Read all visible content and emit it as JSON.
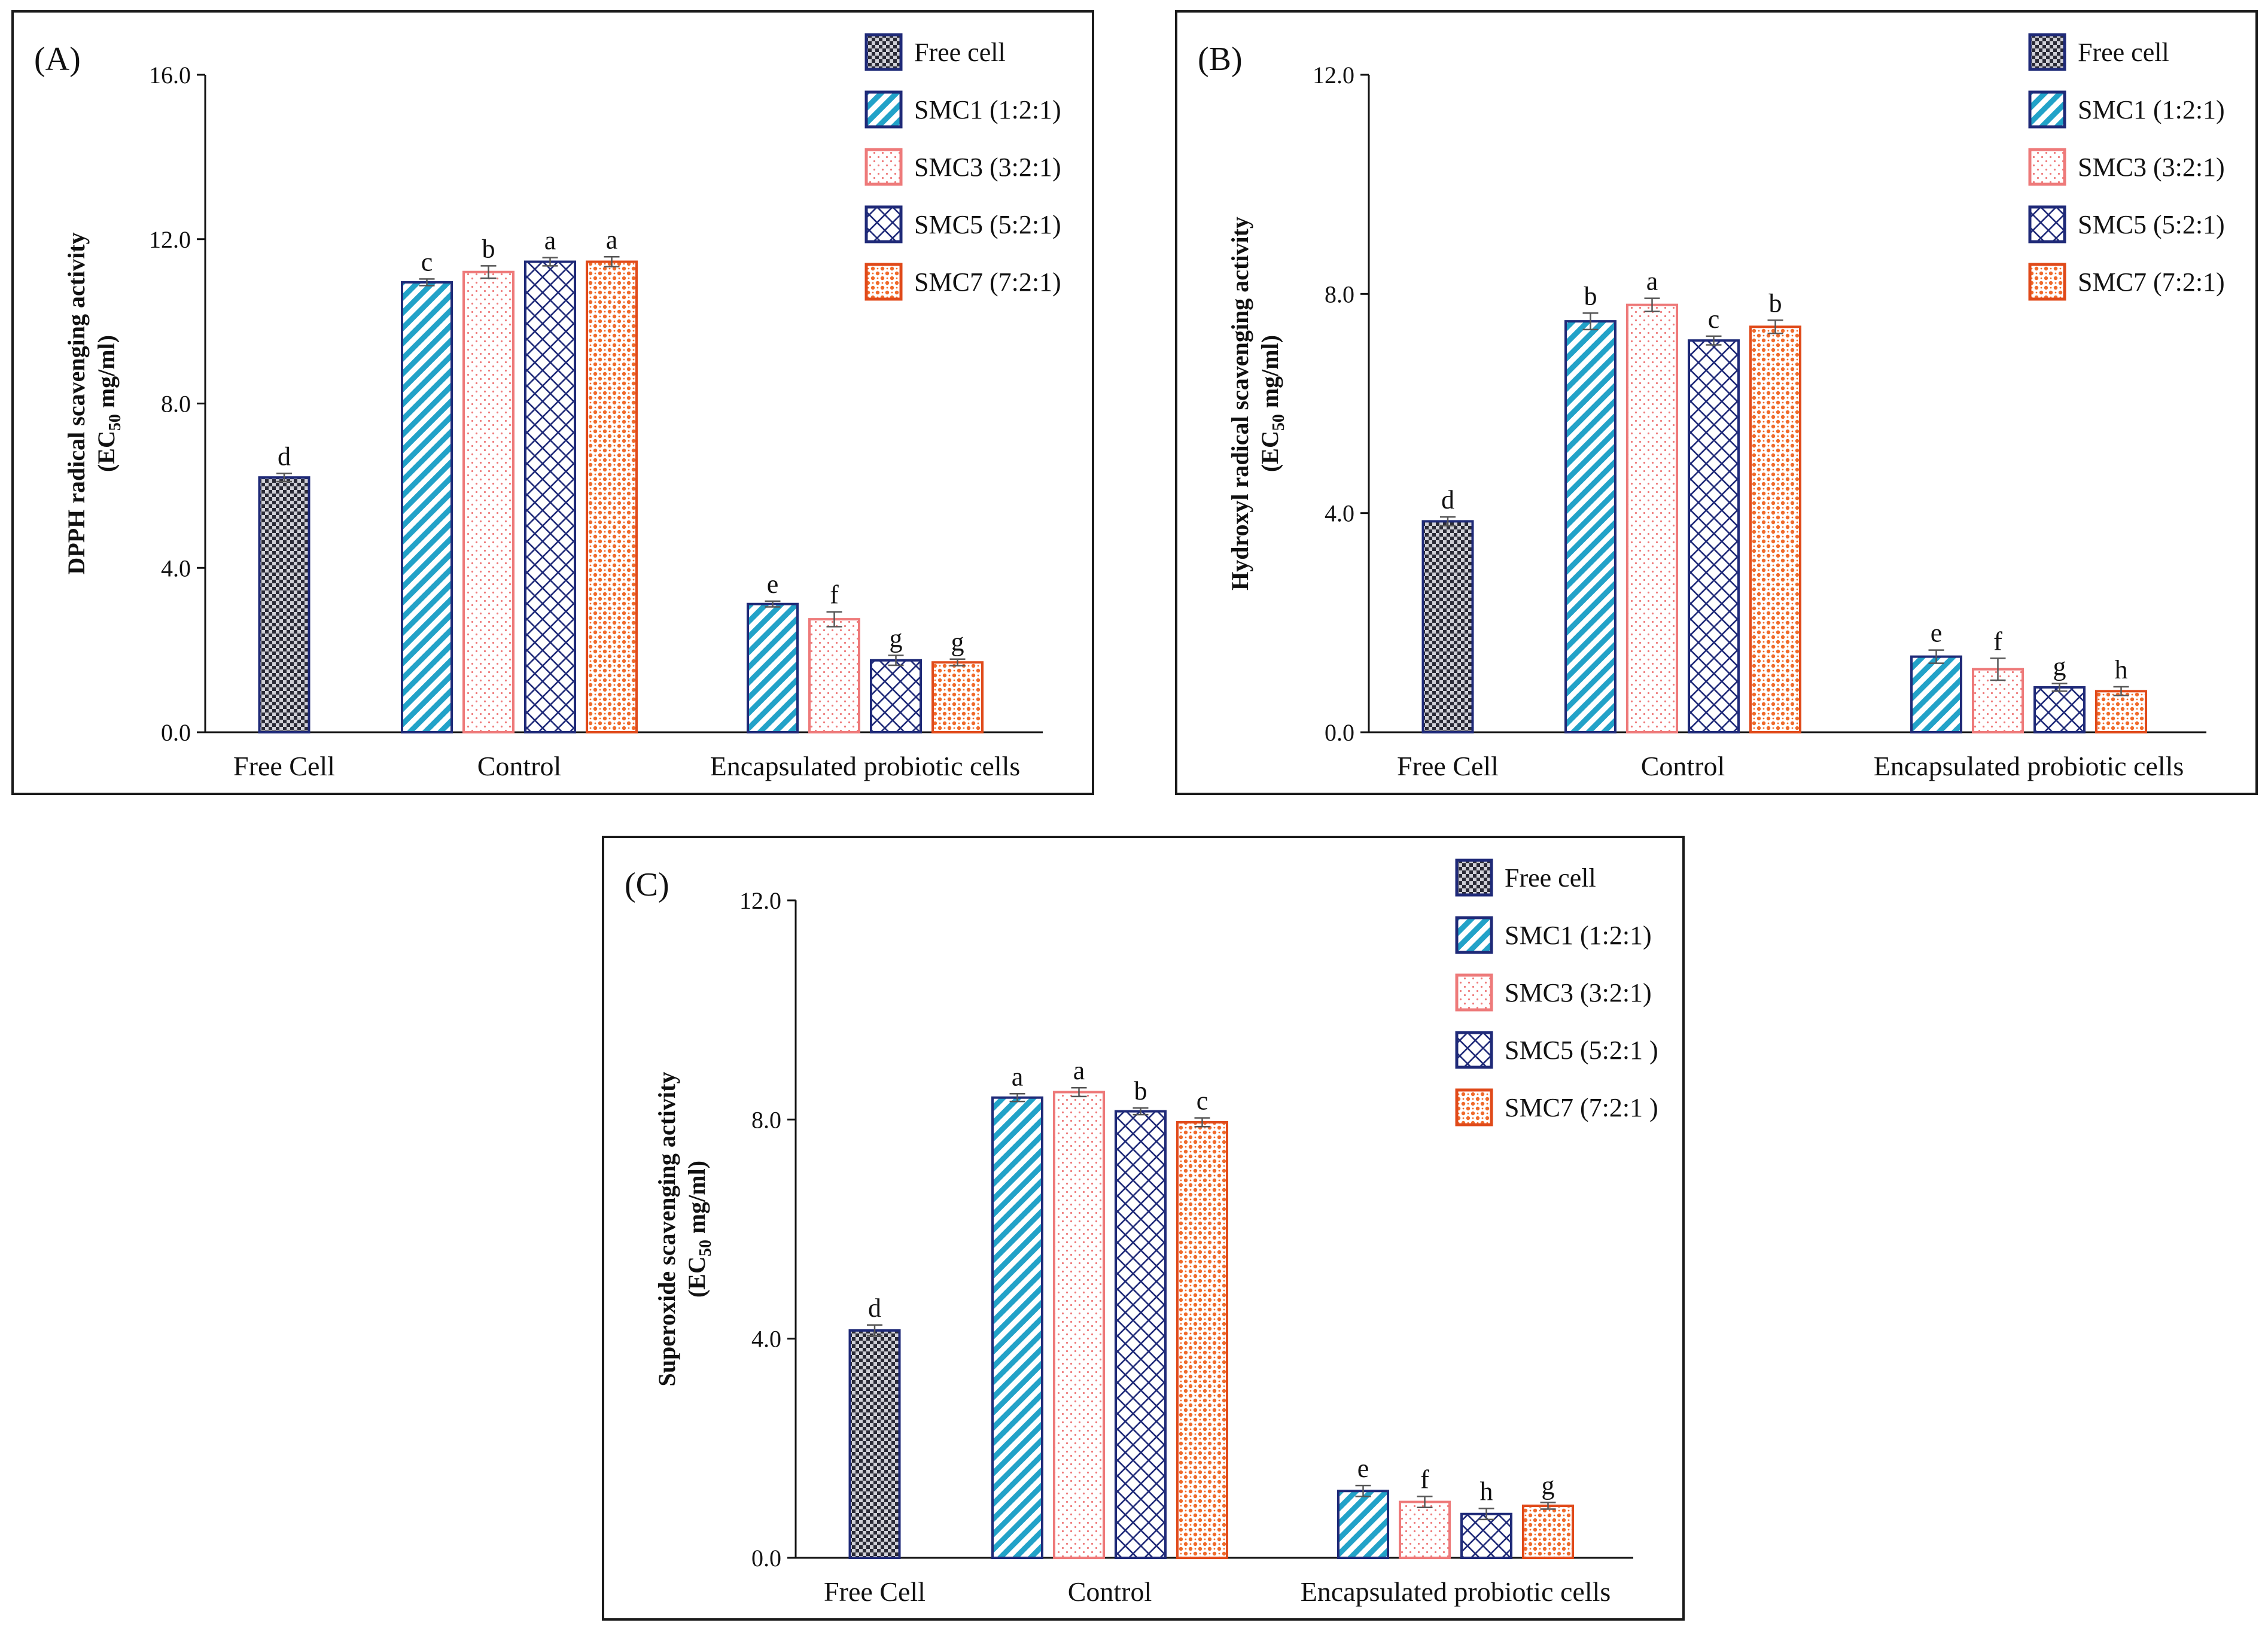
{
  "legend_items": [
    {
      "key": "free",
      "label": "Free cell",
      "pattern": "checker",
      "color": "#1f2a78"
    },
    {
      "key": "smc1",
      "label": "SMC1 (1:2:1)",
      "pattern": "diag",
      "color": "#22a2c8",
      "border": "#1f2a78"
    },
    {
      "key": "smc3",
      "label": "SMC3 (3:2:1)",
      "pattern": "dots",
      "color": "#ee7a7a",
      "border": "#ee7a7a"
    },
    {
      "key": "smc5",
      "label": "SMC5 (5:2:1)",
      "pattern": "cross",
      "color": "#1f2a78",
      "border": "#1f2a78"
    },
    {
      "key": "smc7",
      "label": "SMC7 (7:2:1)",
      "pattern": "blots",
      "color": "#f06a2a",
      "border": "#e04a1a"
    }
  ],
  "chart_data": [
    {
      "panel": "(A)",
      "type": "bar",
      "ylabel_line1": "DPPH radical scavenging activity",
      "ylabel_line2_prefix": "(EC",
      "ylabel_line2_sub": "50",
      "ylabel_line2_suffix": " mg/ml)",
      "ylim": [
        0,
        16
      ],
      "yticks": [
        "0.0",
        "4.0",
        "8.0",
        "12.0",
        "16.0"
      ],
      "categories": [
        "Free Cell",
        "Control",
        "Encapsulated probiotic cells"
      ],
      "legend_labels": [
        "Free cell",
        "SMC1 (1:2:1)",
        "SMC3 (3:2:1)",
        "SMC5 (5:2:1)",
        "SMC7 (7:2:1)"
      ],
      "groups": [
        {
          "bars": [
            {
              "series": "free",
              "value": 6.2,
              "err": 0.1,
              "letter": "d"
            }
          ]
        },
        {
          "bars": [
            {
              "series": "smc1",
              "value": 10.95,
              "err": 0.08,
              "letter": "c"
            },
            {
              "series": "smc3",
              "value": 11.2,
              "err": 0.15,
              "letter": "b"
            },
            {
              "series": "smc5",
              "value": 11.45,
              "err": 0.1,
              "letter": "a"
            },
            {
              "series": "smc7",
              "value": 11.45,
              "err": 0.12,
              "letter": "a"
            }
          ]
        },
        {
          "bars": [
            {
              "series": "smc1",
              "value": 3.12,
              "err": 0.07,
              "letter": "e"
            },
            {
              "series": "smc3",
              "value": 2.75,
              "err": 0.18,
              "letter": "f"
            },
            {
              "series": "smc5",
              "value": 1.75,
              "err": 0.12,
              "letter": "g"
            },
            {
              "series": "smc7",
              "value": 1.7,
              "err": 0.08,
              "letter": "g"
            }
          ]
        }
      ]
    },
    {
      "panel": "(B)",
      "type": "bar",
      "ylabel_line1": "Hydroxyl  radical scavenging activity",
      "ylabel_line2_prefix": "(EC",
      "ylabel_line2_sub": "50",
      "ylabel_line2_suffix": " mg/ml)",
      "ylim": [
        0,
        12
      ],
      "yticks": [
        "0.0",
        "4.0",
        "8.0",
        "12.0"
      ],
      "categories": [
        "Free Cell",
        "Control",
        "Encapsulated probiotic cells"
      ],
      "legend_labels": [
        "Free cell",
        "SMC1 (1:2:1)",
        "SMC3 (3:2:1)",
        "SMC5 (5:2:1)",
        "SMC7 (7:2:1)"
      ],
      "groups": [
        {
          "bars": [
            {
              "series": "free",
              "value": 3.85,
              "err": 0.08,
              "letter": "d"
            }
          ]
        },
        {
          "bars": [
            {
              "series": "smc1",
              "value": 7.5,
              "err": 0.15,
              "letter": "b"
            },
            {
              "series": "smc3",
              "value": 7.8,
              "err": 0.12,
              "letter": "a"
            },
            {
              "series": "smc5",
              "value": 7.15,
              "err": 0.08,
              "letter": "c"
            },
            {
              "series": "smc7",
              "value": 7.4,
              "err": 0.12,
              "letter": "b"
            }
          ]
        },
        {
          "bars": [
            {
              "series": "smc1",
              "value": 1.38,
              "err": 0.12,
              "letter": "e"
            },
            {
              "series": "smc3",
              "value": 1.15,
              "err": 0.2,
              "letter": "f"
            },
            {
              "series": "smc5",
              "value": 0.82,
              "err": 0.07,
              "letter": "g"
            },
            {
              "series": "smc7",
              "value": 0.75,
              "err": 0.08,
              "letter": "h"
            }
          ]
        }
      ]
    },
    {
      "panel": "(C)",
      "type": "bar",
      "ylabel_line1": "Superoxide scavenging activity",
      "ylabel_line2_prefix": "(EC",
      "ylabel_line2_sub": "50",
      "ylabel_line2_suffix": " mg/ml)",
      "ylim": [
        0,
        12
      ],
      "yticks": [
        "0.0",
        "4.0",
        "8.0",
        "12.0"
      ],
      "categories": [
        "Free Cell",
        "Control",
        "Encapsulated probiotic cells"
      ],
      "legend_labels": [
        "Free cell",
        "SMC1 (1:2:1)",
        "SMC3 (3:2:1)",
        "SMC5 (5:2:1 )",
        "SMC7 (7:2:1 )"
      ],
      "groups": [
        {
          "bars": [
            {
              "series": "free",
              "value": 4.15,
              "err": 0.1,
              "letter": "d"
            }
          ]
        },
        {
          "bars": [
            {
              "series": "smc1",
              "value": 8.4,
              "err": 0.07,
              "letter": "a"
            },
            {
              "series": "smc3",
              "value": 8.5,
              "err": 0.08,
              "letter": "a"
            },
            {
              "series": "smc5",
              "value": 8.15,
              "err": 0.06,
              "letter": "b"
            },
            {
              "series": "smc7",
              "value": 7.95,
              "err": 0.08,
              "letter": "c"
            }
          ]
        },
        {
          "bars": [
            {
              "series": "smc1",
              "value": 1.22,
              "err": 0.1,
              "letter": "e"
            },
            {
              "series": "smc3",
              "value": 1.02,
              "err": 0.1,
              "letter": "f"
            },
            {
              "series": "smc5",
              "value": 0.8,
              "err": 0.1,
              "letter": "h"
            },
            {
              "series": "smc7",
              "value": 0.95,
              "err": 0.06,
              "letter": "g"
            }
          ]
        }
      ]
    }
  ]
}
